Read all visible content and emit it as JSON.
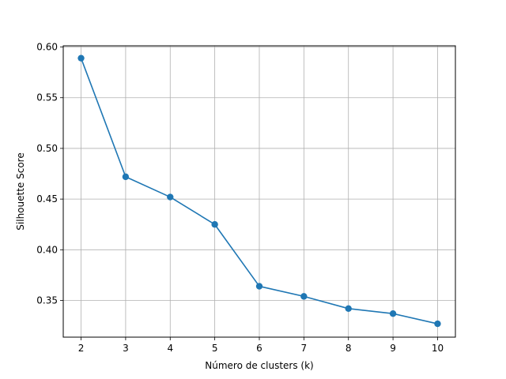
{
  "chart_data": {
    "type": "line",
    "title": "",
    "xlabel": "Número de clusters (k)",
    "ylabel": "Silhouette Score",
    "x": [
      2,
      3,
      4,
      5,
      6,
      7,
      8,
      9,
      10
    ],
    "series": [
      {
        "values": [
          0.589,
          0.472,
          0.452,
          0.425,
          0.364,
          0.354,
          0.342,
          0.337,
          0.327
        ]
      }
    ],
    "xlim": [
      1.6,
      10.4
    ],
    "ylim": [
      0.3138,
      0.6012
    ],
    "xticks": [
      "2",
      "3",
      "4",
      "5",
      "6",
      "7",
      "8",
      "9",
      "10"
    ],
    "yticks": [
      "0.35",
      "0.40",
      "0.45",
      "0.50",
      "0.55",
      "0.60"
    ],
    "grid": true,
    "marker": "circle",
    "line_color": "#1f77b4",
    "grid_color": "#b0b0b0"
  }
}
